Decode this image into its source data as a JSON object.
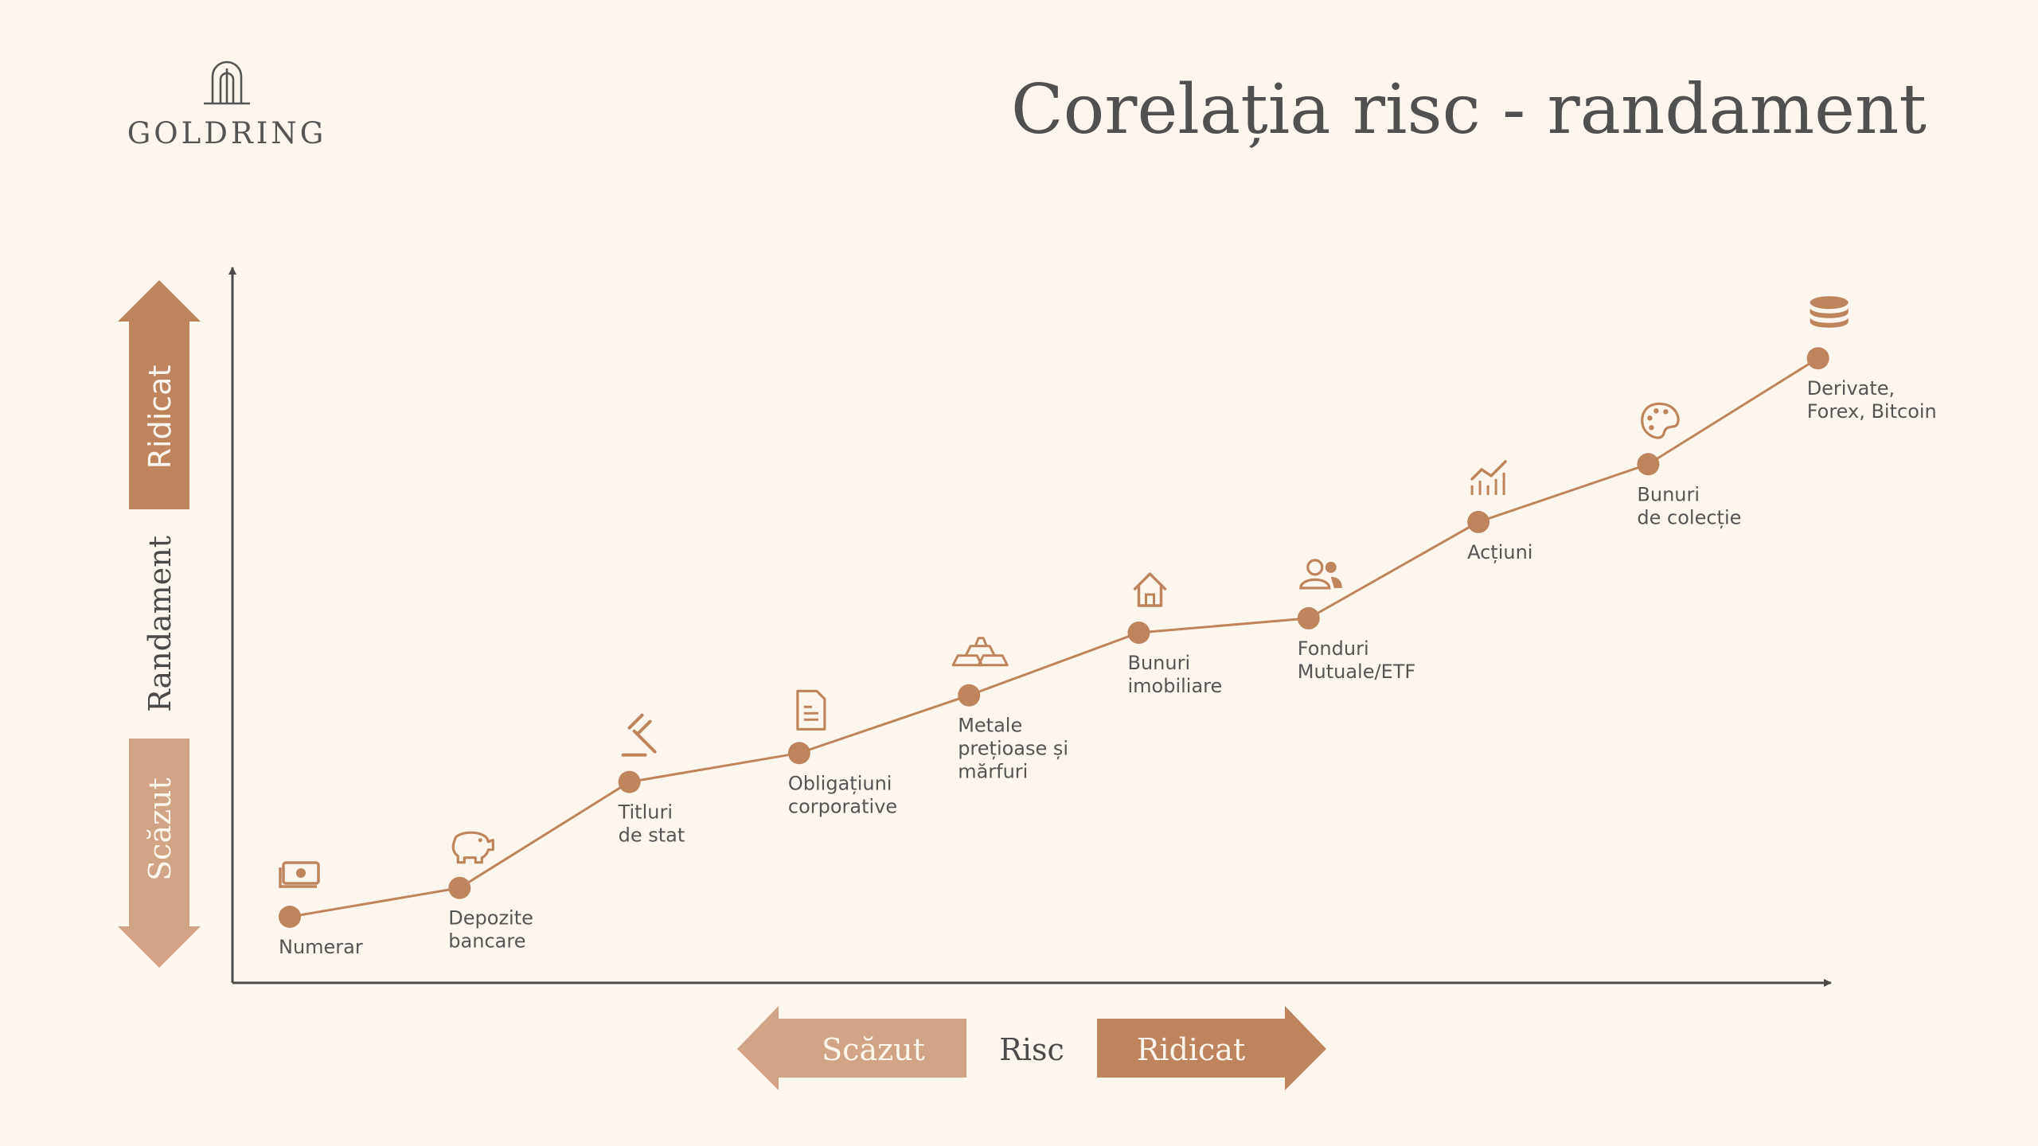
{
  "brand": {
    "name": "GOLDRING"
  },
  "page": {
    "title": "Corelația risc - randament"
  },
  "colors": {
    "background": "#fdf6ee",
    "accent_dark": "#c0845d",
    "accent_light": "#d3a386",
    "axis": "#4a4a4a",
    "text": "#555555"
  },
  "y_axis": {
    "label": "Randament",
    "high_label": "Ridicat",
    "low_label": "Scăzut"
  },
  "x_axis": {
    "label": "Risc",
    "low_label": "Scăzut",
    "high_label": "Ridicat"
  },
  "chart_data": {
    "type": "line",
    "title": "Corelația risc - randament",
    "xlabel": "Risc",
    "ylabel": "Randament",
    "grid": false,
    "points": [
      {
        "x": 1,
        "y": 1.0,
        "label": [
          "Numerar"
        ],
        "icon": "cash-icon"
      },
      {
        "x": 2,
        "y": 1.6,
        "label": [
          "Depozite",
          "bancare"
        ],
        "icon": "piggy-bank-icon"
      },
      {
        "x": 3,
        "y": 3.8,
        "label": [
          "Titluri",
          "de stat"
        ],
        "icon": "gavel-icon"
      },
      {
        "x": 4,
        "y": 4.4,
        "label": [
          "Obligațiuni",
          "corporative"
        ],
        "icon": "document-icon"
      },
      {
        "x": 5,
        "y": 5.6,
        "label": [
          "Metale",
          "prețioase și",
          "mărfuri"
        ],
        "icon": "gold-bars-icon"
      },
      {
        "x": 6,
        "y": 6.9,
        "label": [
          "Bunuri",
          "imobiliare"
        ],
        "icon": "house-icon"
      },
      {
        "x": 7,
        "y": 7.2,
        "label": [
          "Fonduri",
          "Mutuale/ETF"
        ],
        "icon": "people-icon"
      },
      {
        "x": 8,
        "y": 9.2,
        "label": [
          "Acțiuni"
        ],
        "icon": "stock-chart-icon"
      },
      {
        "x": 9,
        "y": 10.4,
        "label": [
          "Bunuri",
          "de colecție"
        ],
        "icon": "palette-icon"
      },
      {
        "x": 10,
        "y": 12.6,
        "label": [
          "Derivate,",
          "Forex, Bitcoin"
        ],
        "icon": "coin-stack-icon"
      }
    ]
  }
}
